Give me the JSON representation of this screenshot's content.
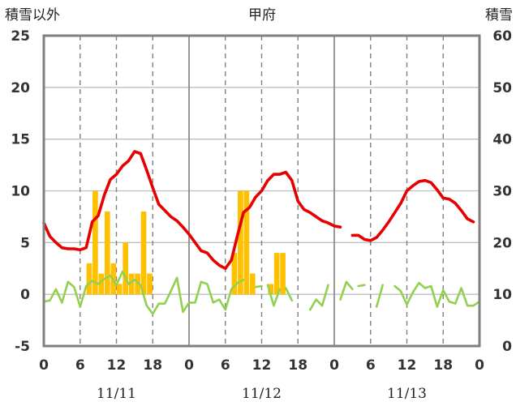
{
  "chart_data": {
    "type": "bar+line",
    "title": "甲府",
    "left_axis_label": "積雪以外",
    "right_axis_label": "積雪",
    "ylim_left": [
      -5,
      25
    ],
    "yticks_left": [
      -5,
      0,
      5,
      10,
      15,
      20,
      25
    ],
    "ylim_right": [
      0,
      60
    ],
    "yticks_right": [
      0,
      10,
      20,
      30,
      40,
      50,
      60
    ],
    "x_range_hours": [
      0,
      72
    ],
    "x_tick_labels": [
      "0",
      "6",
      "12",
      "18",
      "0",
      "6",
      "12",
      "18",
      "0",
      "6",
      "12",
      "18",
      "0"
    ],
    "dates": [
      "11/11",
      "11/12",
      "11/13"
    ],
    "grid": "dashed vertical lines at 6-hourly marks, solid horizontal lines at each left-axis tick, solid day separators",
    "series": [
      {
        "kind": "bar",
        "color": "#FFC000",
        "axis": "left",
        "points": [
          {
            "x": 7,
            "y": 3
          },
          {
            "x": 8,
            "y": 10
          },
          {
            "x": 9,
            "y": 2
          },
          {
            "x": 10,
            "y": 8
          },
          {
            "x": 11,
            "y": 3
          },
          {
            "x": 12,
            "y": 1
          },
          {
            "x": 13,
            "y": 5
          },
          {
            "x": 14,
            "y": 2
          },
          {
            "x": 15,
            "y": 2
          },
          {
            "x": 16,
            "y": 8
          },
          {
            "x": 17,
            "y": 2
          },
          {
            "x": 31,
            "y": 4
          },
          {
            "x": 32,
            "y": 10
          },
          {
            "x": 33,
            "y": 10
          },
          {
            "x": 34,
            "y": 2
          },
          {
            "x": 37,
            "y": 1
          },
          {
            "x": 38,
            "y": 4
          },
          {
            "x": 39,
            "y": 4
          }
        ]
      },
      {
        "kind": "line",
        "color": "#E60000",
        "axis": "left",
        "segments": [
          [
            [
              0,
              6.9
            ],
            [
              1,
              5.6
            ],
            [
              2,
              5.0
            ],
            [
              3,
              4.5
            ],
            [
              4,
              4.4
            ],
            [
              5,
              4.4
            ],
            [
              6,
              4.3
            ],
            [
              7,
              4.5
            ],
            [
              8,
              7.0
            ],
            [
              9,
              7.6
            ],
            [
              10,
              9.6
            ],
            [
              11,
              11.1
            ],
            [
              12,
              11.6
            ],
            [
              13,
              12.4
            ],
            [
              14,
              12.9
            ],
            [
              15,
              13.8
            ],
            [
              16,
              13.6
            ],
            [
              17,
              12.0
            ],
            [
              18,
              10.3
            ],
            [
              19,
              8.7
            ],
            [
              20,
              8.1
            ],
            [
              21,
              7.5
            ],
            [
              22,
              7.1
            ],
            [
              23,
              6.5
            ],
            [
              24,
              5.8
            ],
            [
              25,
              5.0
            ],
            [
              26,
              4.2
            ],
            [
              27,
              4.0
            ],
            [
              28,
              3.3
            ],
            [
              29,
              2.8
            ],
            [
              30,
              2.5
            ],
            [
              31,
              3.3
            ],
            [
              32,
              5.7
            ],
            [
              33,
              7.9
            ],
            [
              34,
              8.4
            ],
            [
              35,
              9.4
            ],
            [
              36,
              10.0
            ],
            [
              37,
              11.0
            ],
            [
              38,
              11.6
            ],
            [
              39,
              11.6
            ],
            [
              40,
              11.8
            ],
            [
              41,
              11.0
            ],
            [
              42,
              9.0
            ],
            [
              43,
              8.2
            ],
            [
              44,
              7.9
            ],
            [
              45,
              7.5
            ],
            [
              46,
              7.1
            ],
            [
              47,
              6.9
            ],
            [
              48,
              6.6
            ],
            [
              49,
              6.5
            ]
          ],
          [
            [
              51,
              5.7
            ],
            [
              52,
              5.7
            ],
            [
              53,
              5.3
            ],
            [
              54,
              5.2
            ],
            [
              55,
              5.5
            ],
            [
              56,
              6.2
            ],
            [
              57,
              7.0
            ],
            [
              58,
              7.9
            ],
            [
              59,
              8.8
            ],
            [
              60,
              10.0
            ],
            [
              61,
              10.5
            ],
            [
              62,
              10.9
            ],
            [
              63,
              11.0
            ],
            [
              64,
              10.8
            ],
            [
              65,
              10.1
            ],
            [
              66,
              9.3
            ],
            [
              67,
              9.2
            ],
            [
              68,
              8.8
            ],
            [
              69,
              8.1
            ],
            [
              70,
              7.3
            ],
            [
              71,
              7.0
            ]
          ]
        ]
      },
      {
        "kind": "line",
        "color": "#92D050",
        "axis": "left",
        "segments": [
          [
            [
              0,
              -0.7
            ],
            [
              1,
              -0.6
            ],
            [
              2,
              0.5
            ],
            [
              3,
              -0.8
            ],
            [
              4,
              1.2
            ],
            [
              5,
              0.7
            ],
            [
              6,
              -1.2
            ],
            [
              7,
              0.8
            ],
            [
              8,
              1.3
            ],
            [
              9,
              1.0
            ],
            [
              10,
              1.5
            ],
            [
              11,
              1.8
            ],
            [
              12,
              0.9
            ],
            [
              13,
              2.2
            ],
            [
              14,
              1.0
            ],
            [
              15,
              1.4
            ],
            [
              16,
              0.9
            ],
            [
              17,
              -1.1
            ],
            [
              18,
              -1.9
            ],
            [
              19,
              -0.9
            ],
            [
              20,
              -0.9
            ],
            [
              21,
              0.3
            ],
            [
              22,
              1.6
            ],
            [
              23,
              -1.7
            ],
            [
              24,
              -0.8
            ],
            [
              25,
              -0.8
            ],
            [
              26,
              1.2
            ],
            [
              27,
              1.0
            ],
            [
              28,
              -0.8
            ],
            [
              29,
              -0.5
            ],
            [
              30,
              -1.5
            ],
            [
              31,
              0.5
            ],
            [
              32,
              1.1
            ],
            [
              33,
              1.4
            ]
          ],
          [
            [
              35,
              0.7
            ],
            [
              36,
              0.8
            ]
          ],
          [
            [
              37,
              0.9
            ],
            [
              38,
              -1.1
            ],
            [
              39,
              0.5
            ]
          ],
          [
            [
              40,
              0.6
            ],
            [
              41,
              -0.6
            ]
          ],
          [
            [
              44,
              -1.5
            ],
            [
              45,
              -0.5
            ],
            [
              46,
              -1.1
            ],
            [
              47,
              0.9
            ]
          ],
          [
            [
              49,
              -0.5
            ],
            [
              50,
              1.2
            ],
            [
              51,
              0.5
            ]
          ],
          [
            [
              52,
              0.8
            ],
            [
              53,
              0.9
            ]
          ],
          [
            [
              55,
              -1.2
            ],
            [
              56,
              0.9
            ]
          ],
          [
            [
              58,
              0.8
            ],
            [
              59,
              0.3
            ],
            [
              60,
              -1.0
            ],
            [
              61,
              0.2
            ],
            [
              62,
              1.1
            ],
            [
              63,
              0.6
            ],
            [
              64,
              0.8
            ],
            [
              65,
              -1.2
            ],
            [
              66,
              0.4
            ],
            [
              67,
              -0.7
            ],
            [
              68,
              -0.9
            ],
            [
              69,
              0.6
            ],
            [
              70,
              -1.1
            ],
            [
              71,
              -1.1
            ],
            [
              72,
              -0.7
            ]
          ]
        ]
      }
    ]
  }
}
